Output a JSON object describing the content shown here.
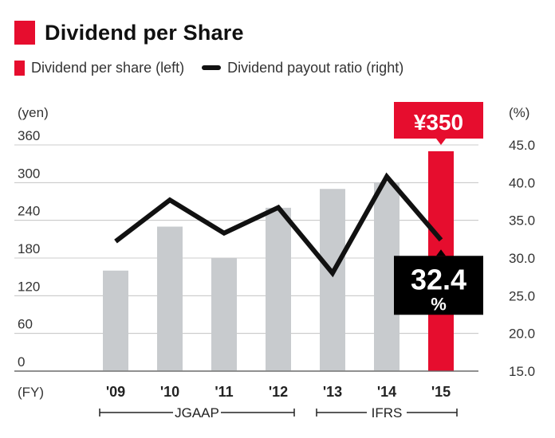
{
  "header": {
    "title": "Dividend per Share"
  },
  "legend": {
    "bar_label": "Dividend per share (left)",
    "line_label": "Dividend payout ratio (right)"
  },
  "colors": {
    "accent": "#e60d2e",
    "bar": "#c8cbce",
    "line": "#111111"
  },
  "chart_data": {
    "type": "bar",
    "categories": [
      "'09",
      "'10",
      "'11",
      "'12",
      "'13",
      "'14",
      "'15"
    ],
    "x_unit": "(FY)",
    "y_left": {
      "unit": "(yen)",
      "ticks": [
        "360",
        "300",
        "240",
        "180",
        "120",
        "60",
        "0"
      ],
      "lim": [
        0,
        360
      ]
    },
    "y_right": {
      "unit": "(%)",
      "ticks": [
        "45.0",
        "40.0",
        "35.0",
        "30.0",
        "25.0",
        "20.0",
        "15.0"
      ],
      "lim": [
        15,
        45
      ]
    },
    "series": [
      {
        "name": "Dividend per share (left)",
        "type": "bar",
        "axis": "left",
        "values": [
          160,
          230,
          180,
          260,
          290,
          300,
          350
        ]
      },
      {
        "name": "Dividend payout ratio (right)",
        "type": "line",
        "axis": "right",
        "values": [
          32.2,
          37.7,
          33.3,
          36.7,
          28.0,
          40.8,
          32.4
        ]
      }
    ],
    "highlight": {
      "index": 6,
      "bar_label": "¥350",
      "line_value": "32.4",
      "line_unit": "%"
    },
    "segments": [
      {
        "label": "JGAAP",
        "from": 0,
        "to": 3
      },
      {
        "label": "IFRS",
        "from": 4,
        "to": 6
      }
    ],
    "grid": true
  }
}
